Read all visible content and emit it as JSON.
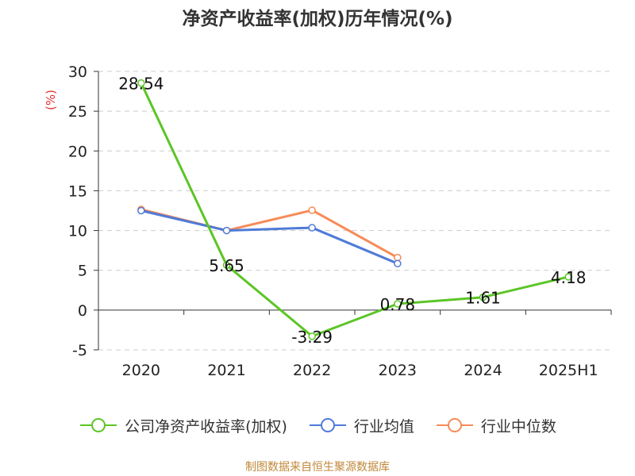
{
  "chart_data": {
    "type": "line",
    "title": "净资产收益率(加权)历年情况(%)",
    "ylabel": "(%)",
    "xlabel": "",
    "categories": [
      "2020",
      "2021",
      "2022",
      "2023",
      "2024",
      "2025H1"
    ],
    "ylim": [
      -5,
      30
    ],
    "yticks": [
      -5,
      0,
      5,
      10,
      15,
      20,
      25,
      30
    ],
    "grid": true,
    "legend_position": "bottom",
    "series": [
      {
        "name": "公司净资产收益率(加权)",
        "color": "#5cc526",
        "values": [
          28.54,
          5.65,
          -3.29,
          0.78,
          1.61,
          4.18
        ],
        "labels": [
          "28.54",
          "5.65",
          "-3.29",
          "0.78",
          "1.61",
          "4.18"
        ]
      },
      {
        "name": "行业均值",
        "color": "#4f7bd7",
        "values": [
          12.5,
          10.0,
          10.35,
          5.85,
          null,
          null
        ]
      },
      {
        "name": "行业中位数",
        "color": "#f68b58",
        "values": [
          12.65,
          10.0,
          12.55,
          6.6,
          null,
          null
        ]
      }
    ]
  },
  "source_note": "制图数据来自恒生聚源数据库"
}
